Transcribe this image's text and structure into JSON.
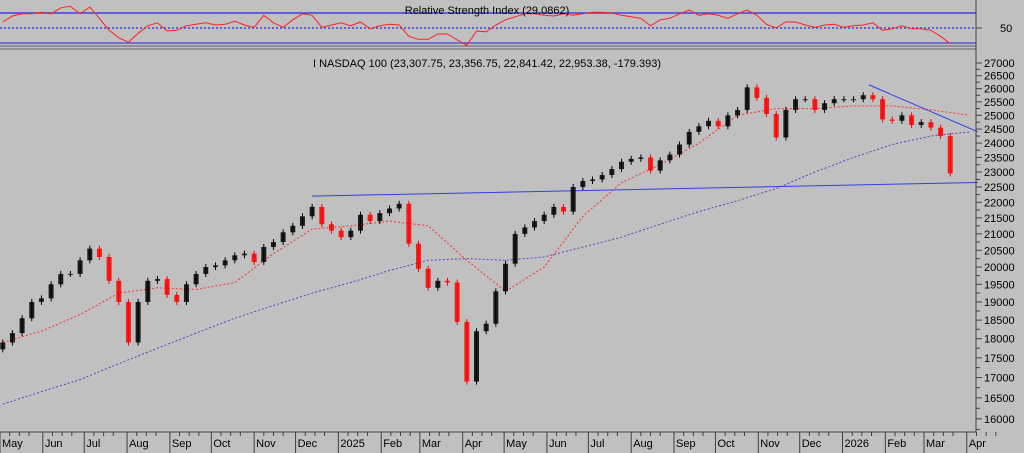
{
  "colors": {
    "background": "#c0c0c0",
    "up_candle": "#000000",
    "down_candle": "#ff0000",
    "ma_short": "#ff3030",
    "ma_long": "#6040c0",
    "trendline": "#3040e0",
    "rsi_line": "#ff2020",
    "rsi_bands": "#4040e0"
  },
  "chart_data": [
    {
      "type": "line",
      "title": "Relative Strength Index (29.0862)",
      "ylim": [
        0,
        100
      ],
      "y_ticks": [
        50
      ],
      "y_tick_labels": [
        "50"
      ],
      "bands": {
        "upper": 70,
        "middle": 50,
        "lower": 30
      },
      "start_date": "2024-05-03",
      "interval_days": 7,
      "values": [
        58,
        66,
        69,
        69,
        71,
        69,
        77,
        79,
        69,
        78,
        63,
        47,
        37,
        31,
        43,
        53,
        57,
        46,
        47,
        53,
        55,
        57,
        54,
        55,
        59,
        54,
        51,
        67,
        57,
        51,
        61,
        69,
        67,
        51,
        54,
        57,
        53,
        58,
        49,
        53,
        55,
        54,
        39,
        35,
        35,
        42,
        42,
        34,
        27,
        46,
        45,
        54,
        61,
        65,
        69,
        69,
        67,
        66,
        69,
        67,
        69,
        71,
        71,
        70,
        67,
        65,
        63,
        53,
        61,
        63,
        69,
        74,
        67,
        69,
        67,
        63,
        69,
        74,
        67,
        55,
        50,
        58,
        58,
        54,
        51,
        54,
        55,
        51,
        53,
        54,
        57,
        47,
        49,
        53,
        49,
        49,
        47,
        39,
        29.1
      ]
    },
    {
      "type": "candlestick",
      "title": "I NASDAQ 100 (23,307.75, 23,356.75, 22,841.42, 22,953.38, -179.393)",
      "y_scale": "log",
      "ylim": [
        15700,
        27300
      ],
      "y_tick_labels": [
        "27000",
        "26500",
        "26000",
        "25500",
        "25000",
        "24500",
        "24000",
        "23500",
        "23000",
        "22500",
        "22000",
        "21500",
        "21000",
        "20500",
        "20000",
        "19500",
        "19000",
        "18500",
        "18000",
        "17500",
        "17000",
        "16500",
        "16000"
      ],
      "x_ticks": [
        {
          "date": "2024-05-01",
          "label": "May"
        },
        {
          "date": "2024-06-01",
          "label": "Jun"
        },
        {
          "date": "2024-07-01",
          "label": "Jul"
        },
        {
          "date": "2024-08-01",
          "label": "Aug"
        },
        {
          "date": "2024-09-01",
          "label": "Sep"
        },
        {
          "date": "2024-10-01",
          "label": "Oct"
        },
        {
          "date": "2024-11-01",
          "label": "Nov"
        },
        {
          "date": "2024-12-01",
          "label": "Dec"
        },
        {
          "date": "2025-01-01",
          "label": "2025"
        },
        {
          "date": "2025-02-01",
          "label": "Feb"
        },
        {
          "date": "2025-03-01",
          "label": "Mar"
        },
        {
          "date": "2025-04-01",
          "label": "Apr"
        },
        {
          "date": "2025-05-01",
          "label": "May"
        },
        {
          "date": "2025-06-01",
          "label": "Jun"
        },
        {
          "date": "2025-07-01",
          "label": "Jul"
        },
        {
          "date": "2025-08-01",
          "label": "Aug"
        },
        {
          "date": "2025-09-01",
          "label": "Sep"
        },
        {
          "date": "2025-10-01",
          "label": "Oct"
        },
        {
          "date": "2025-11-01",
          "label": "Nov"
        },
        {
          "date": "2025-12-01",
          "label": "Dec"
        },
        {
          "date": "2026-01-01",
          "label": "2026"
        },
        {
          "date": "2026-02-01",
          "label": "Feb"
        },
        {
          "date": "2026-03-01",
          "label": "Mar"
        },
        {
          "date": "2026-04-01",
          "label": "Apr"
        }
      ],
      "start_date": "2024-05-03",
      "interval_days": 7,
      "closes": [
        17900,
        18150,
        18550,
        19000,
        19100,
        19500,
        19800,
        19800,
        20200,
        20550,
        20300,
        19600,
        19000,
        17900,
        19000,
        19600,
        19650,
        19200,
        19000,
        19500,
        19800,
        20000,
        20050,
        20200,
        20350,
        20400,
        20150,
        20600,
        20750,
        21050,
        21250,
        21550,
        21850,
        21300,
        21100,
        20900,
        21100,
        21600,
        21400,
        21650,
        21800,
        21950,
        20700,
        19950,
        19400,
        19600,
        19550,
        18450,
        16900,
        18200,
        18400,
        19300,
        20100,
        21000,
        21200,
        21400,
        21600,
        21850,
        21700,
        22500,
        22700,
        22750,
        22900,
        23100,
        23350,
        23450,
        23500,
        23050,
        23400,
        23600,
        23950,
        24400,
        24600,
        24800,
        24600,
        25000,
        25200,
        26050,
        25650,
        25050,
        24200,
        25200,
        25600,
        25600,
        25200,
        25450,
        25600,
        25600,
        25600,
        25750,
        25600,
        24850,
        24800,
        25000,
        24650,
        24750,
        24550,
        24250,
        22953.38
      ],
      "ma_short": {
        "interval_days": 28,
        "values": [
          17900,
          18200,
          18650,
          19250,
          19400,
          19350,
          19550,
          20400,
          21150,
          21250,
          21400,
          21250,
          20200,
          19300,
          20000,
          21550,
          22650,
          23250,
          24000,
          25000,
          25250,
          25250,
          25350,
          25350,
          25200,
          25000
        ]
      },
      "ma_long": {
        "interval_days": 28,
        "values": [
          16350,
          16650,
          16950,
          17350,
          17750,
          18150,
          18550,
          18900,
          19250,
          19550,
          19900,
          20200,
          20250,
          20200,
          20300,
          20600,
          20900,
          21300,
          21700,
          22050,
          22450,
          23000,
          23500,
          23950,
          24250,
          24400
        ]
      },
      "trendlines": [
        {
          "from": {
            "date": "2024-12-13",
            "value": 22200
          },
          "to": {
            "date": "2026-04-09",
            "value": 22650
          }
        },
        {
          "from": {
            "date": "2026-01-20",
            "value": 26150
          },
          "to": {
            "date": "2026-04-09",
            "value": 24400
          }
        }
      ]
    }
  ]
}
